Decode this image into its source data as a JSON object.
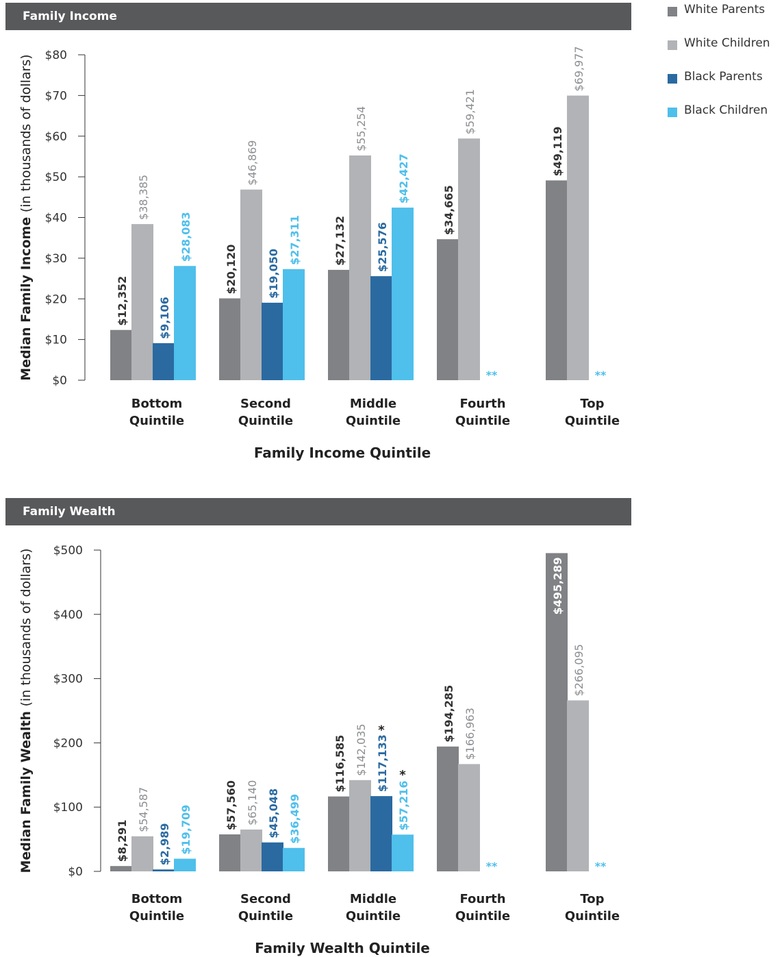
{
  "colors": {
    "white_parents": "#808285",
    "white_children": "#b1b3b6",
    "black_parents": "#2a6aa1",
    "black_children": "#4fbfeb",
    "header_bg": "#58595b",
    "text": "#333333"
  },
  "legend": [
    {
      "label": "White Parents",
      "color": "#808285"
    },
    {
      "label": "White Children",
      "color": "#b1b3b6"
    },
    {
      "label": "Black Parents",
      "color": "#2a6aa1"
    },
    {
      "label": "Black Children",
      "color": "#4fbfeb"
    }
  ],
  "chart_data": [
    {
      "type": "bar",
      "title": "Family Income",
      "ylabel_bold": "Median Family Income",
      "ylabel_rest": "(in thousands of dollars)",
      "xlabel": "Family Income Quintile",
      "ylim": [
        0,
        80
      ],
      "yticks": [
        0,
        10,
        20,
        30,
        40,
        50,
        60,
        70,
        80
      ],
      "ytick_labels": [
        "$0",
        "$10",
        "$20",
        "$30",
        "$40",
        "$50",
        "$60",
        "$70",
        "$80"
      ],
      "categories": [
        [
          "Bottom",
          "Quintile"
        ],
        [
          "Second",
          "Quintile"
        ],
        [
          "Middle",
          "Quintile"
        ],
        [
          "Fourth",
          "Quintile"
        ],
        [
          "Top",
          "Quintile"
        ]
      ],
      "series": [
        {
          "name": "White Parents",
          "values": [
            12.352,
            20.12,
            27.132,
            34.665,
            49.119
          ],
          "labels": [
            "$12,352",
            "$20,120",
            "$27,132",
            "$34,665",
            "$49,119"
          ]
        },
        {
          "name": "White Children",
          "values": [
            38.385,
            46.869,
            55.254,
            59.421,
            69.977
          ],
          "labels": [
            "$38,385",
            "$46,869",
            "$55,254",
            "$59,421",
            "$69,977"
          ]
        },
        {
          "name": "Black Parents",
          "values": [
            9.106,
            19.05,
            25.576,
            null,
            null
          ],
          "labels": [
            "$9,106",
            "$19,050",
            "$25,576",
            "",
            ""
          ]
        },
        {
          "name": "Black Children",
          "values": [
            28.083,
            27.311,
            42.427,
            null,
            null
          ],
          "labels": [
            "$28,083",
            "$27,311",
            "$42,427",
            "",
            ""
          ]
        }
      ],
      "missing_marker": "**",
      "missing_categories": [
        3,
        4
      ],
      "asterisks": []
    },
    {
      "type": "bar",
      "title": "Family Wealth",
      "ylabel_bold": "Median Family Wealth",
      "ylabel_rest": "(in thousands of dollars)",
      "xlabel": "Family Wealth Quintile",
      "ylim": [
        0,
        500
      ],
      "yticks": [
        0,
        100,
        200,
        300,
        400,
        500
      ],
      "ytick_labels": [
        "$0",
        "$100",
        "$200",
        "$300",
        "$400",
        "$500"
      ],
      "categories": [
        [
          "Bottom",
          "Quintile"
        ],
        [
          "Second",
          "Quintile"
        ],
        [
          "Middle",
          "Quintile"
        ],
        [
          "Fourth",
          "Quintile"
        ],
        [
          "Top",
          "Quintile"
        ]
      ],
      "series": [
        {
          "name": "White Parents",
          "values": [
            8.291,
            57.56,
            116.585,
            194.285,
            495.289
          ],
          "labels": [
            "$8,291",
            "$57,560",
            "$116,585",
            "$194,285",
            "$495,289"
          ]
        },
        {
          "name": "White Children",
          "values": [
            54.587,
            65.14,
            142.035,
            166.963,
            266.095
          ],
          "labels": [
            "$54,587",
            "$65,140",
            "$142,035",
            "$166,963",
            "$266,095"
          ]
        },
        {
          "name": "Black Parents",
          "values": [
            2.989,
            45.048,
            117.133,
            null,
            null
          ],
          "labels": [
            "$2,989",
            "$45,048",
            "$117,133",
            "",
            ""
          ]
        },
        {
          "name": "Black Children",
          "values": [
            19.709,
            36.499,
            57.216,
            null,
            null
          ],
          "labels": [
            "$19,709",
            "$36,499",
            "$57,216",
            "",
            ""
          ]
        }
      ],
      "missing_marker": "**",
      "missing_categories": [
        3,
        4
      ],
      "asterisks": [
        {
          "series": 2,
          "category": 2,
          "text": "*"
        },
        {
          "series": 3,
          "category": 2,
          "text": "*"
        }
      ]
    }
  ]
}
